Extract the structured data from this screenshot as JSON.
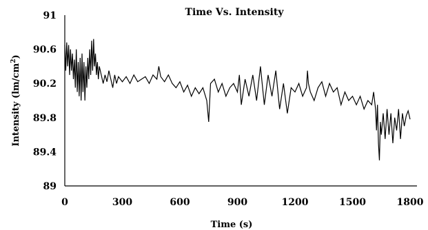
{
  "chart_data": {
    "type": "line",
    "title": "Time Vs. Intensity",
    "xlabel": "Time (s)",
    "ylabel_main": "Intensity (lm/cm",
    "ylabel_sup": "2",
    "ylabel_end": ")",
    "xlim": [
      0,
      1800
    ],
    "ylim": [
      89,
      91
    ],
    "x_ticks": [
      0,
      300,
      600,
      900,
      1200,
      1500,
      1800
    ],
    "x_tick_labels": [
      "0",
      "300",
      "600",
      "900",
      "1200",
      "1500",
      "1800"
    ],
    "y_ticks": [
      89,
      89.4,
      89.8,
      90.2,
      90.6,
      91
    ],
    "y_tick_labels": [
      "89",
      "89.4",
      "89.8",
      "90.2",
      "90.6",
      "91"
    ],
    "grid": false,
    "series": [
      {
        "color": "#000000",
        "x": [
          0,
          5,
          10,
          15,
          20,
          25,
          30,
          35,
          40,
          45,
          50,
          55,
          60,
          65,
          70,
          75,
          80,
          85,
          90,
          95,
          100,
          105,
          110,
          115,
          120,
          125,
          130,
          135,
          140,
          145,
          150,
          155,
          160,
          165,
          170,
          175,
          180,
          190,
          200,
          210,
          220,
          230,
          240,
          250,
          260,
          270,
          280,
          300,
          320,
          340,
          360,
          380,
          400,
          420,
          440,
          460,
          480,
          490,
          500,
          520,
          540,
          560,
          580,
          600,
          620,
          640,
          660,
          680,
          700,
          720,
          740,
          750,
          760,
          780,
          800,
          820,
          840,
          860,
          880,
          900,
          910,
          920,
          940,
          960,
          980,
          1000,
          1020,
          1040,
          1060,
          1080,
          1100,
          1120,
          1140,
          1160,
          1180,
          1200,
          1220,
          1240,
          1260,
          1265,
          1270,
          1280,
          1300,
          1320,
          1340,
          1360,
          1380,
          1400,
          1420,
          1440,
          1460,
          1480,
          1500,
          1520,
          1540,
          1560,
          1580,
          1600,
          1610,
          1620,
          1625,
          1630,
          1635,
          1640,
          1645,
          1650,
          1660,
          1670,
          1680,
          1690,
          1700,
          1710,
          1720,
          1730,
          1740,
          1750,
          1760,
          1770,
          1780,
          1790,
          1800
        ],
        "y": [
          90.65,
          90.35,
          90.68,
          90.4,
          90.65,
          90.3,
          90.6,
          90.35,
          90.55,
          90.25,
          90.48,
          90.15,
          90.6,
          90.1,
          90.45,
          90.05,
          90.5,
          90.0,
          90.55,
          90.1,
          90.45,
          90.0,
          90.4,
          90.15,
          90.5,
          90.25,
          90.6,
          90.3,
          90.7,
          90.35,
          90.72,
          90.4,
          90.55,
          90.3,
          90.45,
          90.25,
          90.4,
          90.3,
          90.2,
          90.3,
          90.22,
          90.35,
          90.25,
          90.15,
          90.3,
          90.2,
          90.28,
          90.22,
          90.28,
          90.2,
          90.3,
          90.22,
          90.25,
          90.28,
          90.2,
          90.3,
          90.25,
          90.4,
          90.28,
          90.22,
          90.3,
          90.2,
          90.15,
          90.22,
          90.1,
          90.18,
          90.05,
          90.15,
          90.08,
          90.15,
          90.0,
          89.75,
          90.2,
          90.25,
          90.1,
          90.2,
          90.05,
          90.15,
          90.2,
          90.1,
          90.3,
          89.95,
          90.25,
          90.05,
          90.3,
          90.0,
          90.4,
          89.95,
          90.3,
          90.05,
          90.35,
          89.9,
          90.2,
          89.85,
          90.15,
          90.1,
          90.2,
          90.05,
          90.15,
          90.35,
          90.2,
          90.1,
          90.0,
          90.15,
          90.22,
          90.05,
          90.2,
          90.1,
          90.15,
          89.95,
          90.1,
          90.0,
          90.05,
          89.95,
          90.05,
          89.9,
          90.0,
          89.95,
          90.1,
          89.9,
          89.65,
          89.95,
          89.5,
          89.3,
          89.75,
          89.6,
          89.85,
          89.55,
          89.9,
          89.6,
          89.85,
          89.5,
          89.8,
          89.65,
          89.9,
          89.55,
          89.85,
          89.7,
          89.82,
          89.88,
          89.78
        ]
      }
    ]
  }
}
